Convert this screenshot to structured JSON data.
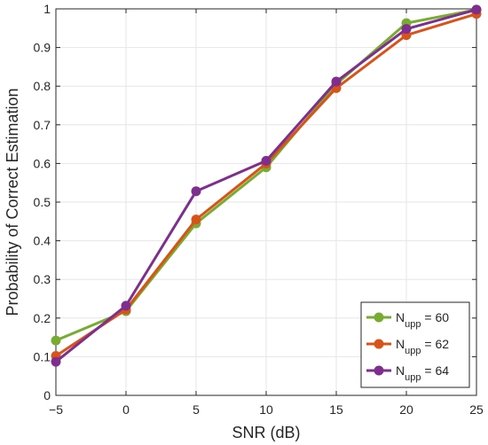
{
  "chart_data": {
    "type": "line",
    "xlabel": "SNR (dB)",
    "ylabel": "Probability of Correct Estimation",
    "xlim": [
      -5,
      25
    ],
    "ylim": [
      0,
      1
    ],
    "x_ticks": [
      "−5",
      "0",
      "5",
      "10",
      "15",
      "20",
      "25"
    ],
    "y_ticks": [
      "0",
      "0.1",
      "0.2",
      "0.3",
      "0.4",
      "0.5",
      "0.6",
      "0.7",
      "0.8",
      "0.9",
      "1"
    ],
    "grid": true,
    "legend_position": "bottom-right",
    "x": [
      -5,
      0,
      5,
      10,
      15,
      20,
      25
    ],
    "series": [
      {
        "name_main": "N",
        "name_sub": "upp",
        "name_rest": " = 60",
        "color": "#77ac30",
        "values": [
          0.142,
          0.218,
          0.445,
          0.59,
          0.805,
          0.963,
          0.998
        ]
      },
      {
        "name_main": "N",
        "name_sub": "upp",
        "name_rest": " = 62",
        "color": "#d95319",
        "values": [
          0.102,
          0.222,
          0.455,
          0.6,
          0.795,
          0.932,
          0.987
        ]
      },
      {
        "name_main": "N",
        "name_sub": "upp",
        "name_rest": " = 64",
        "color": "#7e2f8e",
        "values": [
          0.087,
          0.232,
          0.528,
          0.607,
          0.812,
          0.948,
          0.998
        ]
      }
    ]
  }
}
